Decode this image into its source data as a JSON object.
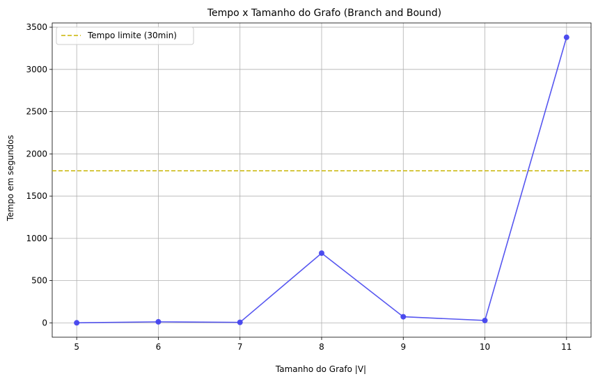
{
  "chart_data": {
    "type": "line",
    "title": "Tempo x Tamanho do Grafo (Branch and Bound)",
    "xlabel": "Tamanho do Grafo |V|",
    "ylabel": "Tempo em segundos",
    "x": [
      5,
      6,
      7,
      8,
      9,
      10,
      11
    ],
    "series": [
      {
        "values": [
          0.5,
          12,
          6,
          825,
          72,
          28,
          3380
        ],
        "color": "#4444ee",
        "marker": "circle"
      }
    ],
    "reference_lines": [
      {
        "name": "Tempo limite (30min)",
        "y": 1800,
        "color": "#c8b400",
        "style": "dashed"
      }
    ],
    "xlim": [
      4.7,
      11.3
    ],
    "ylim": [
      -170,
      3550
    ],
    "xticks": [
      5,
      6,
      7,
      8,
      9,
      10,
      11
    ],
    "yticks": [
      0,
      500,
      1000,
      1500,
      2000,
      2500,
      3000,
      3500
    ],
    "grid": true,
    "legend_position": "top-left"
  }
}
